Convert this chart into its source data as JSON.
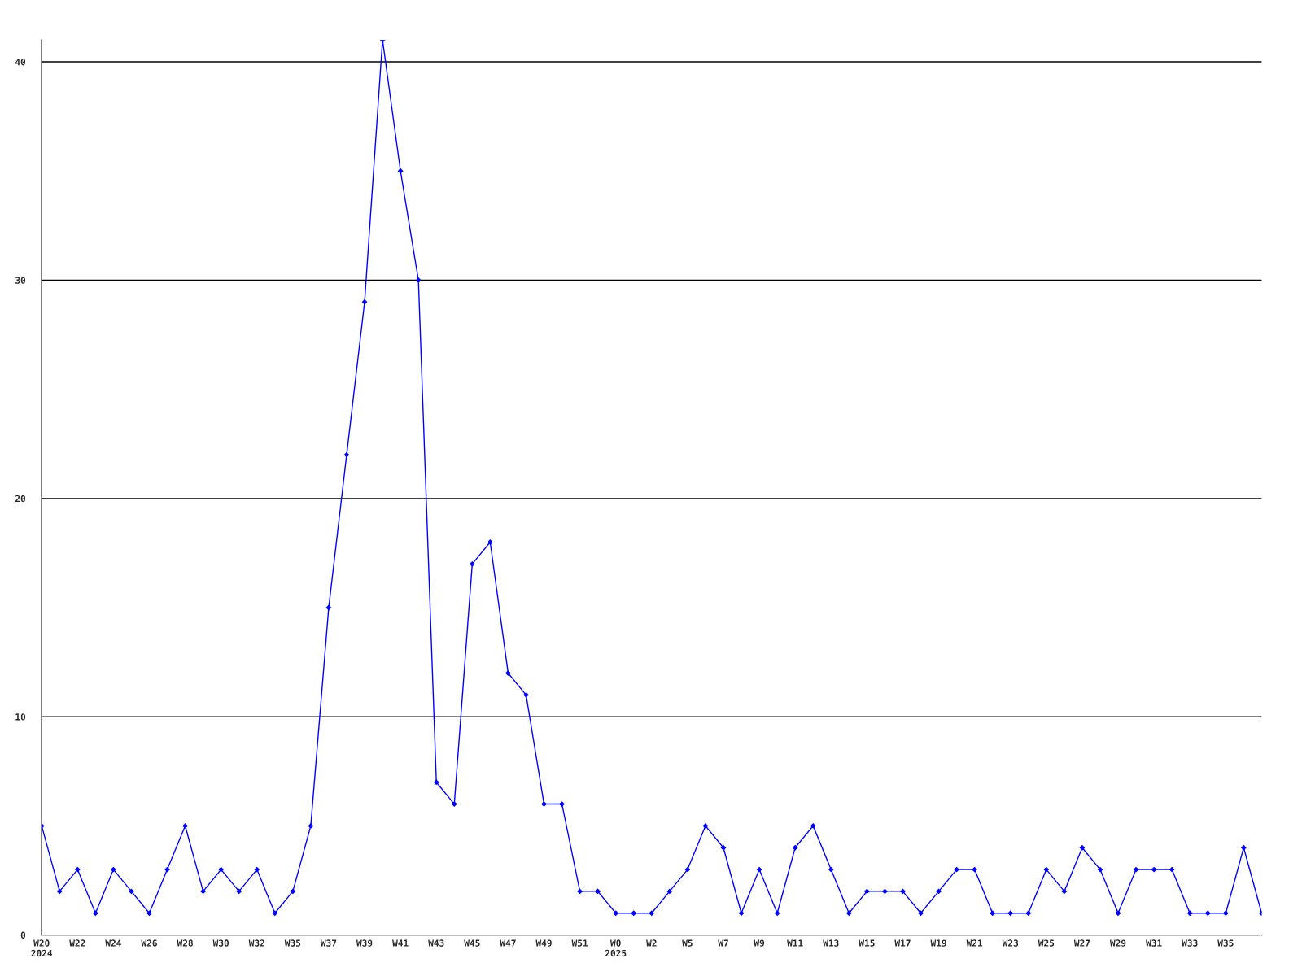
{
  "chart_data": {
    "type": "line",
    "categories": [
      "W20\n2024",
      null,
      "W22",
      null,
      "W24",
      null,
      "W26",
      null,
      "W28",
      null,
      "W30",
      null,
      "W32",
      null,
      "W35",
      null,
      "W37",
      null,
      "W39",
      null,
      "W41",
      null,
      "W43",
      null,
      "W45",
      null,
      "W47",
      null,
      "W49",
      null,
      "W51",
      null,
      "W0\n2025",
      null,
      "W2",
      null,
      "W5",
      null,
      "W7",
      null,
      "W9",
      null,
      "W11",
      null,
      "W13",
      null,
      "W15",
      null,
      "W17",
      null,
      "W19",
      null,
      "W21",
      null,
      "W23",
      null,
      "W25",
      null,
      "W27",
      null,
      "W29",
      null,
      "W31",
      null,
      "W33",
      null,
      "W35",
      null,
      null
    ],
    "series": [
      {
        "color": "#0000ff",
        "values": [
          5,
          2,
          3,
          1,
          3,
          2,
          1,
          3,
          5,
          2,
          3,
          2,
          3,
          1,
          2,
          5,
          15,
          22,
          29,
          41,
          35,
          30,
          7,
          6,
          17,
          18,
          12,
          11,
          6,
          6,
          2,
          2,
          1,
          1,
          1,
          2,
          3,
          5,
          4,
          1,
          3,
          1,
          4,
          5,
          3,
          1,
          2,
          2,
          2,
          1,
          2,
          3,
          3,
          1,
          1,
          1,
          3,
          2,
          4,
          3,
          1,
          3,
          3,
          3,
          1,
          1,
          1,
          4,
          1
        ]
      }
    ],
    "ylim": [
      0,
      41
    ],
    "yticks": [
      0,
      10,
      20,
      30,
      40
    ],
    "grid": "y",
    "marker": "diamond",
    "line_style": "solid"
  }
}
